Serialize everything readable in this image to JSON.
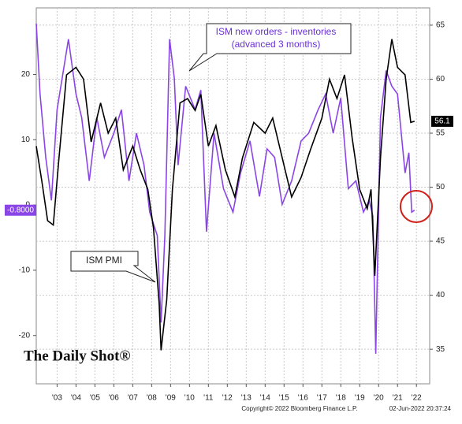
{
  "chart_data": {
    "type": "line",
    "annotations": [
      "ISM new orders - inventories",
      "(advanced 3 months)",
      "ISM PMI"
    ],
    "brand": "The Daily Shot®",
    "source": "Copyright© 2022 Bloomberg Finance L.P.",
    "timestamp": "02-Jun-2022 20:37:24",
    "xlim": [
      2002.4,
      2023.2
    ],
    "xticks": [
      {
        "value": 2003.5,
        "label": "'03"
      },
      {
        "value": 2004.5,
        "label": "'04"
      },
      {
        "value": 2005.5,
        "label": "'05"
      },
      {
        "value": 2006.5,
        "label": "'06"
      },
      {
        "value": 2007.5,
        "label": "'07"
      },
      {
        "value": 2008.5,
        "label": "'08"
      },
      {
        "value": 2009.5,
        "label": "'09"
      },
      {
        "value": 2010.5,
        "label": "'10"
      },
      {
        "value": 2011.5,
        "label": "'11"
      },
      {
        "value": 2012.5,
        "label": "'12"
      },
      {
        "value": 2013.5,
        "label": "'13"
      },
      {
        "value": 2014.5,
        "label": "'14"
      },
      {
        "value": 2015.5,
        "label": "'15"
      },
      {
        "value": 2016.5,
        "label": "'16"
      },
      {
        "value": 2017.5,
        "label": "'17"
      },
      {
        "value": 2018.5,
        "label": "'18"
      },
      {
        "value": 2019.5,
        "label": "'19"
      },
      {
        "value": 2020.5,
        "label": "'20"
      },
      {
        "value": 2021.5,
        "label": "'21"
      },
      {
        "value": 2022.5,
        "label": "'22"
      }
    ],
    "ylim": [
      -27.4,
      30.2
    ],
    "yticks": [
      -20,
      -10,
      0,
      10,
      20
    ],
    "y2lim": [
      31.8,
      66.6
    ],
    "y2ticks": [
      35,
      40,
      45,
      50,
      55,
      60,
      65
    ],
    "grid": true,
    "series": [
      {
        "name": "ISM new orders - inventories",
        "color": "#8a45e6",
        "axis": "y",
        "x": [
          2002.4,
          2002.6,
          2002.9,
          2003.2,
          2003.5,
          2003.9,
          2004.1,
          2004.5,
          2004.8,
          2005.2,
          2005.6,
          2006.0,
          2006.5,
          2006.9,
          2007.3,
          2007.7,
          2008.1,
          2008.4,
          2008.8,
          2009.0,
          2009.2,
          2009.45,
          2009.7,
          2009.9,
          2010.3,
          2010.8,
          2011.1,
          2011.4,
          2011.8,
          2012.3,
          2012.8,
          2013.2,
          2013.7,
          2014.2,
          2014.6,
          2015.0,
          2015.4,
          2015.9,
          2016.4,
          2016.8,
          2017.3,
          2017.7,
          2018.1,
          2018.5,
          2018.9,
          2019.3,
          2019.7,
          2020.0,
          2020.2,
          2020.35,
          2020.6,
          2020.9,
          2021.2,
          2021.5,
          2021.9,
          2022.1,
          2022.25,
          2022.4
        ],
        "values": [
          27.8,
          17,
          7.3,
          0.7,
          14.6,
          21.8,
          25.4,
          17,
          13.4,
          3.7,
          13.4,
          7.3,
          11,
          14.6,
          3.7,
          11,
          6.1,
          -1.1,
          -4.7,
          -18,
          -4.7,
          25.4,
          19.4,
          6.1,
          18.2,
          14.6,
          17.6,
          -4.1,
          11,
          2.5,
          -1.1,
          4.9,
          9.8,
          1.3,
          8.6,
          7.3,
          0.1,
          3.7,
          9.8,
          11,
          14.6,
          17,
          11,
          16.4,
          2.5,
          3.7,
          -1.1,
          0.7,
          -1.7,
          -22.8,
          13.4,
          20.6,
          18.2,
          17,
          4.9,
          8,
          -1.1,
          -0.8
        ],
        "value_labels": [
          null,
          null,
          null,
          null,
          null,
          null,
          null,
          null,
          null,
          null,
          null,
          null,
          null,
          null,
          null,
          null,
          null,
          null,
          null,
          null,
          null,
          null,
          null,
          null,
          null,
          null,
          null,
          null,
          null,
          null,
          null,
          null,
          null,
          null,
          null,
          null,
          null,
          null,
          null,
          null,
          null,
          null,
          null,
          null,
          null,
          null,
          null,
          null,
          null,
          null,
          null,
          null,
          null,
          null,
          null,
          null,
          null,
          "-0.8000"
        ]
      },
      {
        "name": "ISM PMI",
        "color": "#000000",
        "axis": "y2",
        "x": [
          2002.4,
          2002.7,
          2003.0,
          2003.3,
          2003.6,
          2004.0,
          2004.5,
          2004.9,
          2005.3,
          2005.8,
          2006.2,
          2006.6,
          2007.0,
          2007.5,
          2007.9,
          2008.3,
          2008.6,
          2008.9,
          2009.0,
          2009.3,
          2009.6,
          2010.0,
          2010.4,
          2010.8,
          2011.1,
          2011.5,
          2011.9,
          2012.4,
          2012.9,
          2013.3,
          2013.9,
          2014.5,
          2014.9,
          2015.5,
          2015.9,
          2016.4,
          2016.9,
          2017.5,
          2017.9,
          2018.3,
          2018.7,
          2019.1,
          2019.5,
          2019.9,
          2020.1,
          2020.3,
          2020.6,
          2020.9,
          2021.2,
          2021.5,
          2021.9,
          2022.2,
          2022.4
        ],
        "values": [
          53.8,
          50.5,
          46.9,
          46.5,
          52.7,
          60.4,
          61.1,
          60,
          54.2,
          57.8,
          55,
          56.4,
          51.6,
          53.8,
          51.6,
          49.8,
          46.2,
          39.2,
          34.9,
          39.6,
          49.8,
          57.8,
          58.2,
          57.1,
          58.6,
          53.8,
          55.7,
          51.6,
          49.1,
          52.7,
          56,
          55,
          56.4,
          52,
          49.1,
          50.9,
          53.5,
          56.4,
          60,
          58.2,
          60.4,
          54.6,
          49.8,
          48,
          49.8,
          41.8,
          52.7,
          60,
          63.7,
          61.1,
          60.4,
          56,
          56.1
        ],
        "value_labels": [
          null,
          null,
          null,
          null,
          null,
          null,
          null,
          null,
          null,
          null,
          null,
          null,
          null,
          null,
          null,
          null,
          null,
          null,
          null,
          null,
          null,
          null,
          null,
          null,
          null,
          null,
          null,
          null,
          null,
          null,
          null,
          null,
          null,
          null,
          null,
          null,
          null,
          null,
          null,
          null,
          null,
          null,
          null,
          null,
          null,
          null,
          null,
          null,
          null,
          null,
          null,
          null,
          "56.1"
        ]
      }
    ]
  }
}
